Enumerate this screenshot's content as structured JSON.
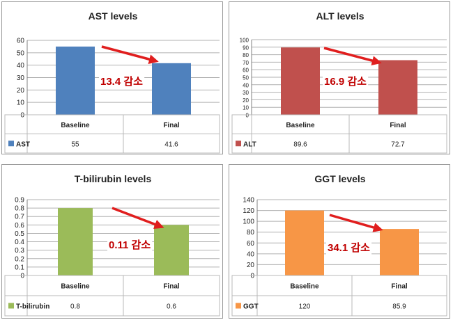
{
  "chart_data": [
    {
      "type": "bar",
      "title": "AST levels",
      "categories": [
        "Baseline",
        "Final"
      ],
      "series": [
        {
          "name": "AST",
          "values": [
            55,
            41.6
          ],
          "color": "#4f81bd"
        }
      ],
      "table_values": [
        "55",
        "41.6"
      ],
      "yticks": [
        "0",
        "10",
        "20",
        "30",
        "40",
        "50",
        "60"
      ],
      "ylim": [
        0,
        60
      ],
      "annotation": "13.4 감소",
      "arrow_color": "#e01e1e",
      "xlabel": "",
      "ylabel": ""
    },
    {
      "type": "bar",
      "title": "ALT levels",
      "categories": [
        "Baseline",
        "Final"
      ],
      "series": [
        {
          "name": "ALT",
          "values": [
            89.6,
            72.7
          ],
          "color": "#c0504d"
        }
      ],
      "table_values": [
        "89.6",
        "72.7"
      ],
      "yticks": [
        "0",
        "10",
        "20",
        "30",
        "40",
        "50",
        "60",
        "70",
        "80",
        "90",
        "100"
      ],
      "ylim": [
        0,
        100
      ],
      "annotation": "16.9 감소",
      "arrow_color": "#e01e1e",
      "xlabel": "",
      "ylabel": ""
    },
    {
      "type": "bar",
      "title": "T-bilirubin levels",
      "categories": [
        "Baseline",
        "Final"
      ],
      "series": [
        {
          "name": "T-bilirubin",
          "values": [
            0.8,
            0.6
          ],
          "color": "#9bbb59"
        }
      ],
      "table_values": [
        "0.8",
        "0.6"
      ],
      "yticks": [
        "0",
        "0.1",
        "0.2",
        "0.3",
        "0.4",
        "0.5",
        "0.6",
        "0.7",
        "0.8",
        "0.9"
      ],
      "ylim": [
        0,
        0.9
      ],
      "annotation": "0.11 감소",
      "arrow_color": "#e01e1e",
      "xlabel": "",
      "ylabel": ""
    },
    {
      "type": "bar",
      "title": "GGT levels",
      "categories": [
        "Baseline",
        "Final"
      ],
      "series": [
        {
          "name": "GGT",
          "values": [
            120,
            85.9
          ],
          "color": "#f79646"
        }
      ],
      "table_values": [
        "120",
        "85.9"
      ],
      "yticks": [
        "0",
        "20",
        "40",
        "60",
        "80",
        "100",
        "120",
        "140"
      ],
      "ylim": [
        0,
        140
      ],
      "annotation": "34.1 감소",
      "arrow_color": "#e01e1e",
      "xlabel": "",
      "ylabel": ""
    }
  ]
}
